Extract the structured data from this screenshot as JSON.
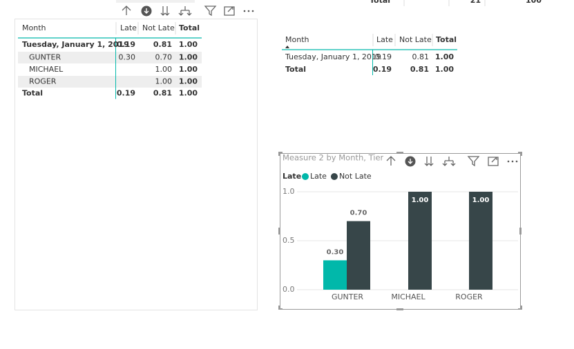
{
  "top_fragment": {
    "cells": [
      "Total",
      "21",
      "100"
    ]
  },
  "table_left": {
    "columns": [
      "Month",
      "Late",
      "Not Late",
      "Total"
    ],
    "rows": [
      [
        "Tuesday, January 1, 2019",
        "0.19",
        "0.81",
        "1.00"
      ],
      [
        "GUNTER",
        "0.30",
        "0.70",
        "1.00"
      ],
      [
        "MICHAEL",
        null,
        "1.00",
        "1.00"
      ],
      [
        "ROGER",
        null,
        "1.00",
        "1.00"
      ],
      [
        "Total",
        "0.19",
        "0.81",
        "1.00"
      ]
    ]
  },
  "table_right": {
    "columns": [
      "Month",
      "Late",
      "Not Late",
      "Total"
    ],
    "rows": [
      [
        "Tuesday, January 1, 2019",
        "0.19",
        "0.81",
        "1.00"
      ],
      [
        "Total",
        "0.19",
        "0.81",
        "1.00"
      ]
    ]
  },
  "chart_data": {
    "type": "bar",
    "title": "Measure 2 by Month, Tier",
    "legend_title": "Late",
    "categories": [
      "GUNTER",
      "MICHAEL",
      "ROGER"
    ],
    "series": [
      {
        "name": "Late",
        "color": "#01b8aa",
        "values": [
          0.3,
          null,
          null
        ],
        "value_labels": [
          "0.30",
          null,
          null
        ]
      },
      {
        "name": "Not Late",
        "color": "#374649",
        "values": [
          0.7,
          1,
          1
        ],
        "value_labels": [
          "0.70",
          "1.00",
          "1.00"
        ]
      }
    ],
    "ylim": [
      0,
      1
    ],
    "yticks": [
      {
        "value": 0,
        "label": "0.0"
      },
      {
        "value": 0.5,
        "label": "0.5"
      },
      {
        "value": 1,
        "label": "1.0"
      }
    ],
    "grid": true
  }
}
